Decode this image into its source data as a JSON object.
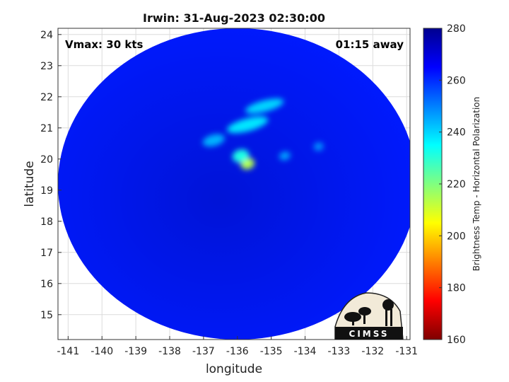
{
  "chart_data": {
    "type": "heatmap",
    "title": "Irwin: 31-Aug-2023 02:30:00",
    "xlabel": "longitude",
    "ylabel": "latitude",
    "xlim": [
      -141.3,
      -130.9
    ],
    "ylim": [
      14.2,
      24.2
    ],
    "xticks": [
      -141,
      -140,
      -139,
      -138,
      -137,
      -136,
      -135,
      -134,
      -133,
      -132,
      -131
    ],
    "yticks": [
      15,
      16,
      17,
      18,
      19,
      20,
      21,
      22,
      23,
      24
    ],
    "grid": true,
    "annotations": {
      "vmax": "Vmax: 30 kts",
      "away": "01:15 away"
    },
    "colorbar": {
      "label": "Brightness Temp - Horizontal Polarization",
      "range": [
        160,
        280
      ],
      "ticks": [
        160,
        180,
        200,
        220,
        240,
        260,
        280
      ],
      "colors": [
        "#7f0000",
        "#ff0000",
        "#ff8000",
        "#ffff00",
        "#80ff80",
        "#00ffff",
        "#0080ff",
        "#0000ff",
        "#00008f"
      ]
    },
    "swath": {
      "center_lon": -136.0,
      "center_lat": 19.2,
      "radius_deg_lon": 5.3,
      "radius_deg_lat": 5.0
    },
    "background_temp": 262,
    "features": [
      {
        "name": "eye-region",
        "lon": -135.7,
        "lat": 19.85,
        "temp": 214
      },
      {
        "name": "inner-band",
        "lon": -135.9,
        "lat": 20.1,
        "temp": 232
      },
      {
        "name": "north-band",
        "lon": -135.7,
        "lat": 21.1,
        "temp": 238
      },
      {
        "name": "northeast-band",
        "lon": -135.2,
        "lat": 21.7,
        "temp": 240
      },
      {
        "name": "west-band",
        "lon": -136.7,
        "lat": 20.6,
        "temp": 244
      },
      {
        "name": "east-cell",
        "lon": -134.6,
        "lat": 20.1,
        "temp": 246
      },
      {
        "name": "far-east-cell",
        "lon": -133.6,
        "lat": 20.4,
        "temp": 248
      }
    ],
    "logo_text": "CIMSS"
  }
}
